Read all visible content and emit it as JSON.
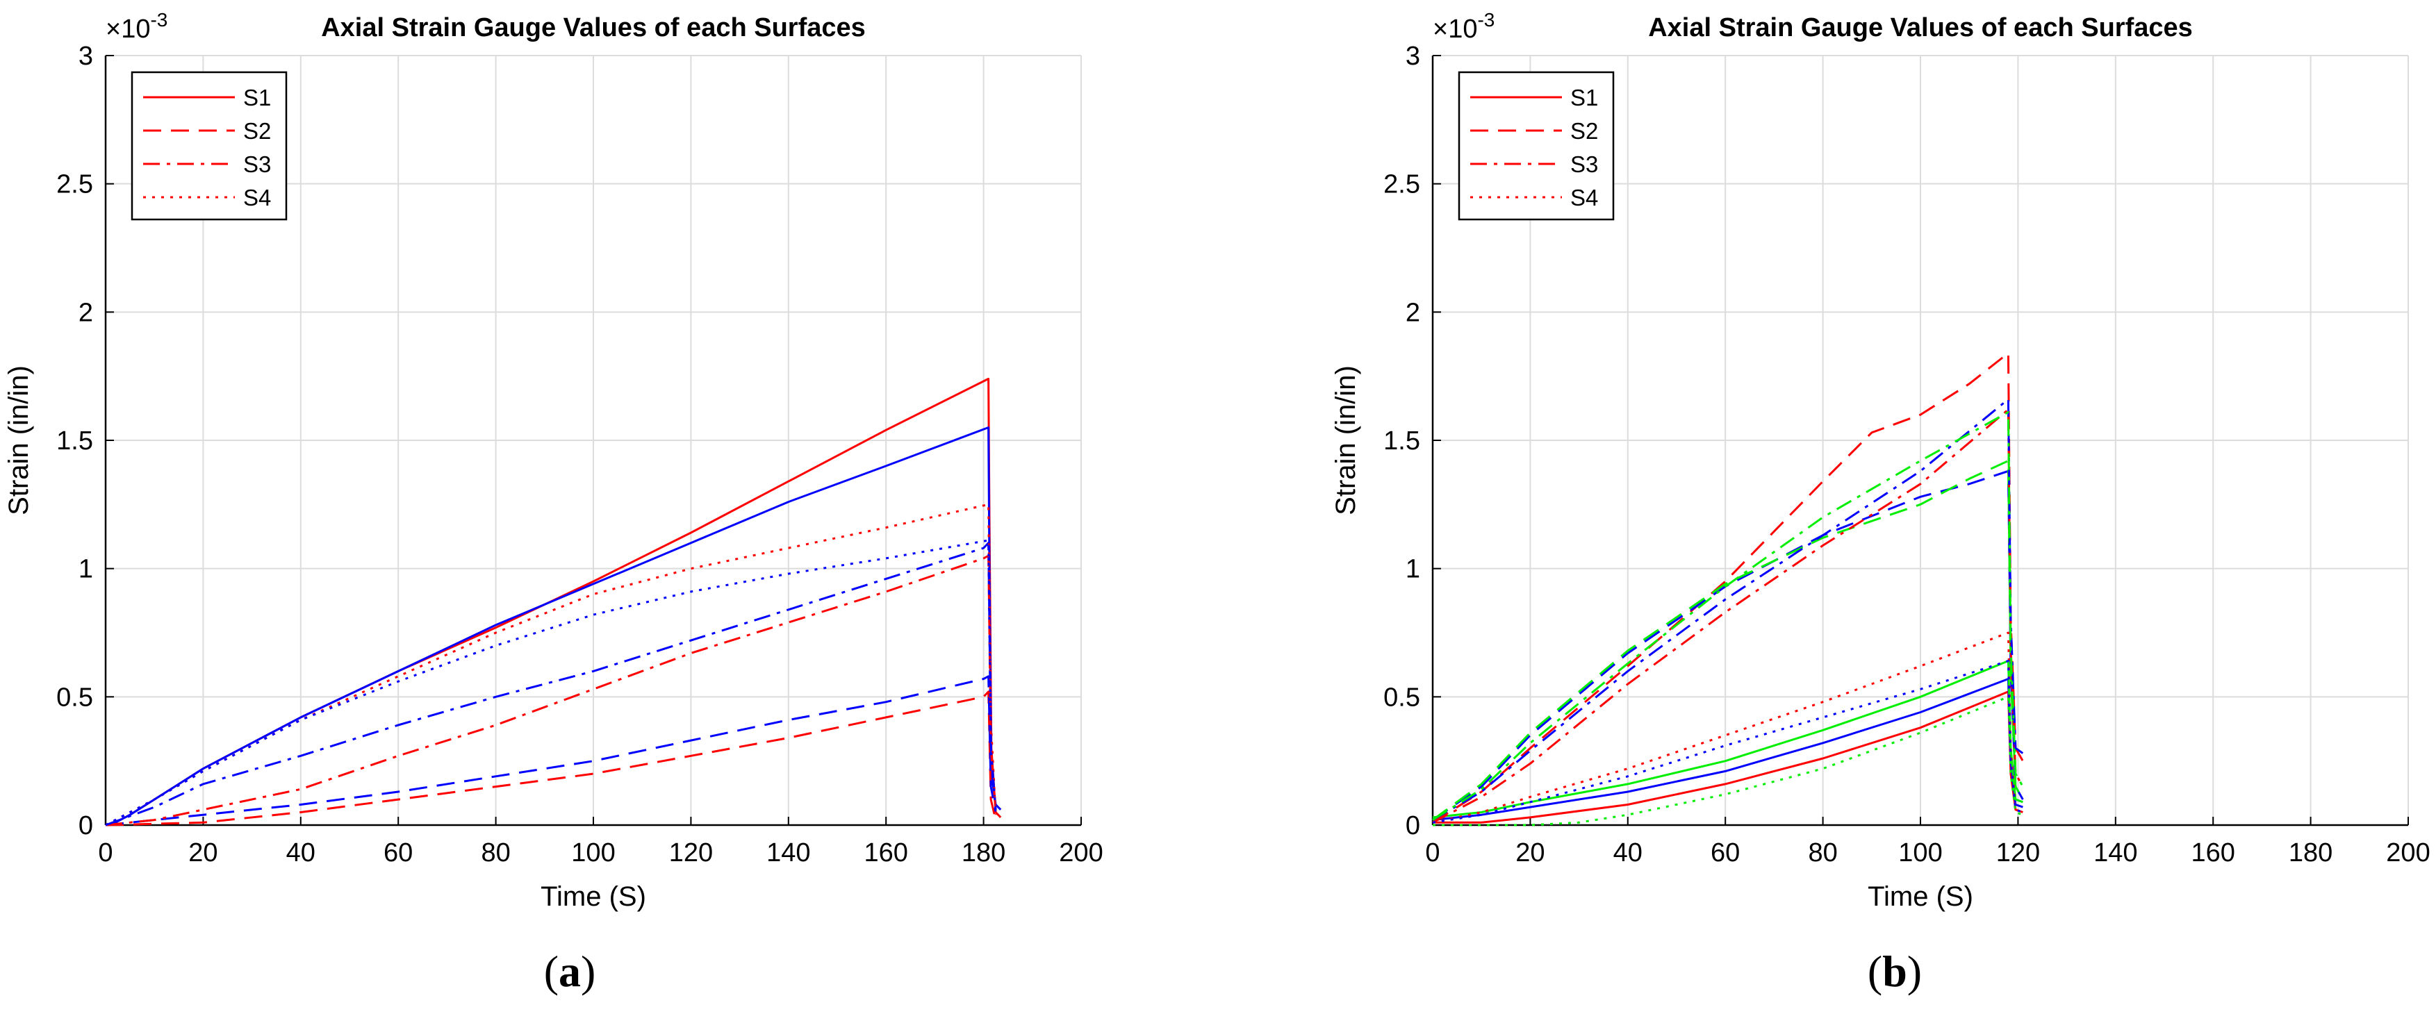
{
  "chart_data": [
    {
      "type": "line",
      "panel": "a",
      "title": "Axial Strain Gauge Values of each Surfaces",
      "xlabel": "Time (S)",
      "ylabel": "Strain (in/in)",
      "y_multiplier_label": "×10",
      "y_multiplier_exp": "-3",
      "xlim": [
        0,
        200
      ],
      "ylim": [
        0,
        3
      ],
      "xticks": [
        "0",
        "20",
        "40",
        "60",
        "80",
        "100",
        "120",
        "140",
        "160",
        "180",
        "200"
      ],
      "yticks": [
        "0",
        "0.5",
        "1",
        "1.5",
        "2",
        "2.5",
        "3"
      ],
      "grid": true,
      "legend_position": "top-left",
      "legend": [
        {
          "label": "S1",
          "dash": "solid"
        },
        {
          "label": "S2",
          "dash": "dashed"
        },
        {
          "label": "S3",
          "dash": "dashdot"
        },
        {
          "label": "S4",
          "dash": "dotted"
        }
      ],
      "caption": "a",
      "series": [
        {
          "name": "S1 red",
          "color": "#ff0000",
          "dash": "solid",
          "x": [
            0,
            2,
            5,
            10,
            20,
            40,
            60,
            80,
            100,
            120,
            140,
            160,
            181,
            181.2,
            181.6,
            182.5,
            183.5
          ],
          "y": [
            0,
            0.01,
            0.04,
            0.1,
            0.22,
            0.42,
            0.6,
            0.77,
            0.95,
            1.14,
            1.34,
            1.54,
            1.74,
            1.2,
            0.3,
            0.05,
            0.03
          ]
        },
        {
          "name": "S1 blue",
          "color": "#0000ff",
          "dash": "solid",
          "x": [
            0,
            2,
            5,
            10,
            20,
            40,
            60,
            80,
            100,
            120,
            140,
            160,
            181,
            181.2,
            181.6,
            182.5,
            183.5
          ],
          "y": [
            0,
            0.01,
            0.04,
            0.1,
            0.22,
            0.42,
            0.6,
            0.78,
            0.94,
            1.1,
            1.26,
            1.4,
            1.55,
            1.0,
            0.2,
            0.08,
            0.06
          ]
        },
        {
          "name": "S2 red",
          "color": "#ff0000",
          "dash": "dashed",
          "x": [
            0,
            10,
            20,
            40,
            60,
            80,
            100,
            120,
            140,
            160,
            180,
            181,
            181.5,
            182.5
          ],
          "y": [
            0,
            0.005,
            0.01,
            0.05,
            0.1,
            0.15,
            0.2,
            0.27,
            0.34,
            0.42,
            0.5,
            0.52,
            0.1,
            0.02
          ]
        },
        {
          "name": "S2 blue",
          "color": "#0000ff",
          "dash": "dashed",
          "x": [
            0,
            10,
            20,
            40,
            60,
            80,
            100,
            120,
            140,
            160,
            180,
            181,
            181.5,
            182.5
          ],
          "y": [
            0,
            0.02,
            0.04,
            0.08,
            0.13,
            0.19,
            0.25,
            0.33,
            0.41,
            0.48,
            0.57,
            0.58,
            0.15,
            0.05
          ]
        },
        {
          "name": "S3 red",
          "color": "#ff0000",
          "dash": "dashdot",
          "x": [
            0,
            10,
            20,
            40,
            60,
            80,
            100,
            120,
            140,
            160,
            180,
            181,
            181.5,
            182.5
          ],
          "y": [
            0,
            0.02,
            0.06,
            0.14,
            0.27,
            0.39,
            0.53,
            0.67,
            0.79,
            0.91,
            1.04,
            1.05,
            0.3,
            0.05
          ]
        },
        {
          "name": "S3 blue",
          "color": "#0000ff",
          "dash": "dashdot",
          "x": [
            0,
            10,
            20,
            40,
            60,
            80,
            100,
            120,
            140,
            160,
            180,
            181,
            181.5,
            182.5
          ],
          "y": [
            0,
            0.07,
            0.16,
            0.27,
            0.39,
            0.5,
            0.6,
            0.72,
            0.84,
            0.96,
            1.08,
            1.1,
            0.3,
            0.06
          ]
        },
        {
          "name": "S4 red",
          "color": "#ff0000",
          "dash": "dotted",
          "x": [
            0,
            5,
            10,
            20,
            40,
            60,
            80,
            100,
            120,
            140,
            160,
            181,
            181.5,
            182.5
          ],
          "y": [
            0,
            0.05,
            0.1,
            0.21,
            0.41,
            0.58,
            0.75,
            0.9,
            1.0,
            1.08,
            1.16,
            1.25,
            0.4,
            0.04
          ]
        },
        {
          "name": "S4 blue",
          "color": "#0000ff",
          "dash": "dotted",
          "x": [
            0,
            5,
            10,
            20,
            40,
            60,
            80,
            100,
            120,
            140,
            160,
            181,
            181.5,
            182.5
          ],
          "y": [
            0,
            0.05,
            0.1,
            0.21,
            0.41,
            0.56,
            0.7,
            0.82,
            0.91,
            0.98,
            1.04,
            1.11,
            0.3,
            0.05
          ]
        }
      ]
    },
    {
      "type": "line",
      "panel": "b",
      "title": "Axial Strain Gauge Values of each Surfaces",
      "xlabel": "Time (S)",
      "ylabel": "Strain (in/in)",
      "y_multiplier_label": "×10",
      "y_multiplier_exp": "-3",
      "xlim": [
        0,
        200
      ],
      "ylim": [
        0,
        3
      ],
      "xticks": [
        "0",
        "20",
        "40",
        "60",
        "80",
        "100",
        "120",
        "140",
        "160",
        "180",
        "200"
      ],
      "yticks": [
        "0",
        "0.5",
        "1",
        "1.5",
        "2",
        "2.5",
        "3"
      ],
      "grid": true,
      "legend_position": "top-left",
      "legend": [
        {
          "label": "S1",
          "dash": "solid"
        },
        {
          "label": "S2",
          "dash": "dashed"
        },
        {
          "label": "S3",
          "dash": "dashdot"
        },
        {
          "label": "S4",
          "dash": "dotted"
        }
      ],
      "caption": "b",
      "series": [
        {
          "name": "S1 red",
          "color": "#ff0000",
          "dash": "solid",
          "x": [
            0,
            10,
            20,
            40,
            60,
            80,
            100,
            118,
            118.5,
            119.5,
            121
          ],
          "y": [
            0.01,
            0.01,
            0.03,
            0.08,
            0.16,
            0.26,
            0.38,
            0.52,
            0.2,
            0.06,
            0.05
          ]
        },
        {
          "name": "S1 blue",
          "color": "#0000ff",
          "dash": "solid",
          "x": [
            0,
            10,
            20,
            40,
            60,
            80,
            100,
            118,
            118.5,
            119.5,
            121
          ],
          "y": [
            0.02,
            0.04,
            0.07,
            0.13,
            0.21,
            0.32,
            0.44,
            0.57,
            0.25,
            0.08,
            0.07
          ]
        },
        {
          "name": "S1 green",
          "color": "#00ee00",
          "dash": "solid",
          "x": [
            0,
            10,
            20,
            40,
            60,
            80,
            100,
            118,
            118.5,
            119.5,
            121
          ],
          "y": [
            0.03,
            0.05,
            0.09,
            0.16,
            0.25,
            0.37,
            0.5,
            0.64,
            0.3,
            0.1,
            0.09
          ]
        },
        {
          "name": "S2 red",
          "color": "#ff0000",
          "dash": "dashed",
          "x": [
            0,
            10,
            20,
            40,
            60,
            80,
            90,
            100,
            110,
            118,
            118.5,
            119.5,
            121
          ],
          "y": [
            0.01,
            0.13,
            0.3,
            0.62,
            0.95,
            1.34,
            1.53,
            1.6,
            1.72,
            1.84,
            0.8,
            0.3,
            0.25
          ]
        },
        {
          "name": "S2 blue",
          "color": "#0000ff",
          "dash": "dashed",
          "x": [
            0,
            10,
            20,
            40,
            60,
            80,
            100,
            110,
            118,
            118.5,
            119.5,
            121
          ],
          "y": [
            0.02,
            0.15,
            0.35,
            0.67,
            0.93,
            1.13,
            1.28,
            1.33,
            1.38,
            0.6,
            0.15,
            0.1
          ]
        },
        {
          "name": "S2 green",
          "color": "#00ee00",
          "dash": "dashed",
          "x": [
            0,
            10,
            20,
            40,
            60,
            80,
            100,
            110,
            118,
            118.5,
            119.5,
            121
          ],
          "y": [
            0.02,
            0.16,
            0.36,
            0.68,
            0.94,
            1.12,
            1.25,
            1.35,
            1.42,
            0.6,
            0.15,
            0.1
          ]
        },
        {
          "name": "S3 red",
          "color": "#ff0000",
          "dash": "dashdot",
          "x": [
            0,
            10,
            20,
            40,
            60,
            80,
            100,
            118,
            118.5,
            119.5,
            121
          ],
          "y": [
            0.01,
            0.11,
            0.24,
            0.55,
            0.83,
            1.09,
            1.33,
            1.62,
            0.7,
            0.2,
            0.15
          ]
        },
        {
          "name": "S3 blue",
          "color": "#0000ff",
          "dash": "dashdot",
          "x": [
            0,
            10,
            20,
            40,
            60,
            80,
            100,
            118,
            118.5,
            119.5,
            121
          ],
          "y": [
            0.02,
            0.13,
            0.29,
            0.6,
            0.88,
            1.13,
            1.38,
            1.66,
            0.8,
            0.3,
            0.28
          ]
        },
        {
          "name": "S3 green",
          "color": "#00ee00",
          "dash": "dashdot",
          "x": [
            0,
            10,
            20,
            40,
            60,
            80,
            100,
            118,
            118.5,
            119.5,
            121
          ],
          "y": [
            0.02,
            0.14,
            0.32,
            0.63,
            0.93,
            1.2,
            1.42,
            1.61,
            0.7,
            0.2,
            0.15
          ]
        },
        {
          "name": "S4 red",
          "color": "#ff0000",
          "dash": "dotted",
          "x": [
            0,
            10,
            20,
            40,
            60,
            80,
            100,
            118,
            118.5,
            119.5,
            121
          ],
          "y": [
            0.01,
            0.05,
            0.11,
            0.22,
            0.35,
            0.48,
            0.62,
            0.75,
            0.3,
            0.06,
            0.05
          ]
        },
        {
          "name": "S4 blue",
          "color": "#0000ff",
          "dash": "dotted",
          "x": [
            0,
            10,
            20,
            40,
            60,
            80,
            100,
            118,
            118.5,
            119.5,
            121
          ],
          "y": [
            0.01,
            0.04,
            0.09,
            0.19,
            0.31,
            0.42,
            0.53,
            0.64,
            0.25,
            0.06,
            0.05
          ]
        },
        {
          "name": "S4 green",
          "color": "#00ee00",
          "dash": "dotted",
          "x": [
            0,
            10,
            20,
            30,
            40,
            60,
            80,
            100,
            118,
            118.5,
            119.5,
            121
          ],
          "y": [
            0.0,
            0.0,
            0.0,
            0.01,
            0.04,
            0.12,
            0.22,
            0.36,
            0.5,
            0.2,
            0.05,
            0.04
          ]
        }
      ]
    }
  ]
}
